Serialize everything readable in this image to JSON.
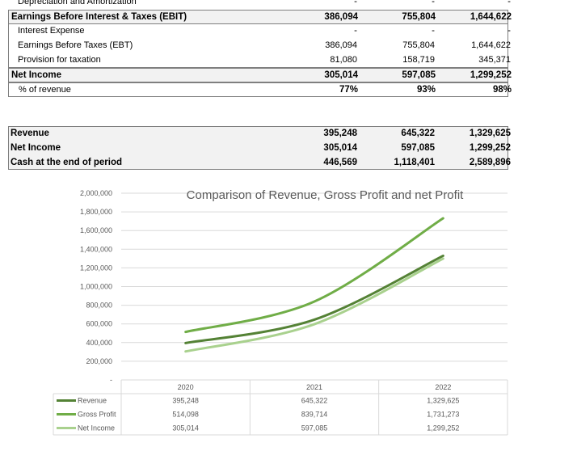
{
  "income": {
    "depr": {
      "label": "Depreciation and Amortization",
      "v": [
        "-",
        "-",
        "-"
      ]
    },
    "ebit": {
      "label": "Earnings Before Interest & Taxes (EBIT)",
      "v": [
        "386,094",
        "755,804",
        "1,644,622"
      ]
    },
    "interest": {
      "label": "Interest Expense",
      "v": [
        "-",
        "-",
        "-"
      ]
    },
    "ebt": {
      "label": "Earnings Before Taxes (EBT)",
      "v": [
        "386,094",
        "755,804",
        "1,644,622"
      ]
    },
    "tax": {
      "label": "Provision for taxation",
      "v": [
        "81,080",
        "158,719",
        "345,371"
      ]
    },
    "net": {
      "label": "Net Income",
      "v": [
        "305,014",
        "597,085",
        "1,299,252"
      ]
    },
    "pct": {
      "label": "% of revenue",
      "v": [
        "77%",
        "93%",
        "98%"
      ]
    }
  },
  "summary": {
    "revenue": {
      "label": "Revenue",
      "v": [
        "395,248",
        "645,322",
        "1,329,625"
      ]
    },
    "net": {
      "label": "Net Income",
      "v": [
        "305,014",
        "597,085",
        "1,299,252"
      ]
    },
    "cash": {
      "label": "Cash at the end of period",
      "v": [
        "446,569",
        "1,118,401",
        "2,589,896"
      ]
    }
  },
  "colors": {
    "revenue": "#548235",
    "gross": "#70ad47",
    "net": "#a9d18e"
  },
  "chart_data": {
    "type": "line",
    "title": "Comparison of Revenue, Gross Profit and net Profit",
    "categories": [
      "2020",
      "2021",
      "2022"
    ],
    "ylim": [
      0,
      2000000
    ],
    "yticks": [
      "-",
      "200,000",
      "400,000",
      "600,000",
      "800,000",
      "1,000,000",
      "1,200,000",
      "1,400,000",
      "1,600,000",
      "1,800,000",
      "2,000,000"
    ],
    "grid": true,
    "legend": "data-table",
    "series": [
      {
        "name": "Revenue",
        "values": [
          395248,
          645322,
          1329625
        ],
        "labels": [
          "395,248",
          "645,322",
          "1,329,625"
        ]
      },
      {
        "name": "Gross Profit",
        "values": [
          514098,
          839714,
          1731273
        ],
        "labels": [
          "514,098",
          "839,714",
          "1,731,273"
        ]
      },
      {
        "name": "Net Income",
        "values": [
          305014,
          597085,
          1299252
        ],
        "labels": [
          "305,014",
          "597,085",
          "1,299,252"
        ]
      }
    ]
  }
}
